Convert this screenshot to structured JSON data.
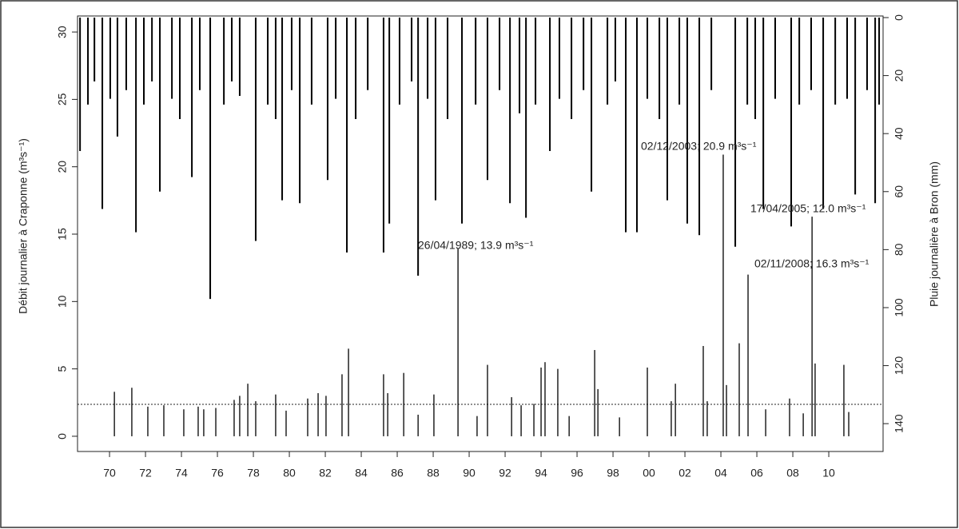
{
  "chart_data": {
    "type": "spikes",
    "ylabel": "Débit journalier à Craponne (m³s⁻¹)",
    "y2label": "Pluie journalière à Bron (mm)",
    "xlim": [
      1968.22,
      2013.02
    ],
    "xticks": [
      {
        "value": 1970,
        "label": "70"
      },
      {
        "value": 1972,
        "label": "72"
      },
      {
        "value": 1974,
        "label": "74"
      },
      {
        "value": 1976,
        "label": "76"
      },
      {
        "value": 1978,
        "label": "78"
      },
      {
        "value": 1980,
        "label": "80"
      },
      {
        "value": 1982,
        "label": "82"
      },
      {
        "value": 1984,
        "label": "84"
      },
      {
        "value": 1986,
        "label": "86"
      },
      {
        "value": 1988,
        "label": "88"
      },
      {
        "value": 1990,
        "label": "90"
      },
      {
        "value": 1992,
        "label": "92"
      },
      {
        "value": 1994,
        "label": "94"
      },
      {
        "value": 1996,
        "label": "96"
      },
      {
        "value": 1998,
        "label": "98"
      },
      {
        "value": 2000,
        "label": "00"
      },
      {
        "value": 2002,
        "label": "02"
      },
      {
        "value": 2004,
        "label": "04"
      },
      {
        "value": 2006,
        "label": "06"
      },
      {
        "value": 2008,
        "label": "08"
      },
      {
        "value": 2010,
        "label": "10"
      }
    ],
    "ylim": [
      -1.13,
      31.19
    ],
    "yticks": [
      0,
      5,
      10,
      15,
      20,
      25,
      30
    ],
    "y2lim": [
      -0.55,
      149.6
    ],
    "y2_reversed": true,
    "y2ticks": [
      0,
      20,
      40,
      60,
      80,
      100,
      120,
      140
    ],
    "threshold": 2.37,
    "series": [
      {
        "color": "#000000",
        "x": [
          1970.27,
          1971.24,
          1972.13,
          1973.02,
          1974.13,
          1974.93,
          1975.24,
          1975.91,
          1976.93,
          1977.24,
          1977.69,
          1978.13,
          1979.24,
          1979.82,
          1981.02,
          1981.6,
          1982.04,
          1982.93,
          1983.29,
          1985.24,
          1985.47,
          1986.36,
          1987.16,
          1988.04,
          1989.38,
          1990.44,
          1991.02,
          1992.36,
          1992.89,
          1993.6,
          1994.0,
          1994.22,
          1994.93,
          1995.56,
          1996.98,
          1997.16,
          1998.36,
          1999.91,
          2001.24,
          2001.47,
          2003.02,
          2003.24,
          2004.13,
          2004.31,
          2005.02,
          2005.51,
          2006.49,
          2007.82,
          2008.58,
          2009.07,
          2009.24,
          2010.84,
          2011.11
        ],
        "values": [
          3.3,
          3.6,
          2.2,
          2.3,
          2.0,
          2.2,
          2.0,
          2.1,
          2.7,
          3.0,
          3.9,
          2.6,
          3.1,
          1.9,
          2.8,
          3.2,
          3.0,
          4.6,
          6.5,
          4.6,
          3.2,
          4.7,
          1.6,
          3.1,
          13.9,
          1.5,
          5.3,
          2.9,
          2.3,
          2.4,
          5.1,
          5.5,
          5.0,
          1.5,
          6.4,
          3.5,
          1.4,
          5.1,
          2.6,
          3.9,
          6.7,
          2.6,
          20.9,
          3.8,
          6.9,
          12.0,
          2.0,
          2.8,
          1.7,
          16.3,
          5.4,
          5.3,
          1.8
        ]
      },
      {
        "color": "#000000",
        "axis": "y2",
        "x": [
          1968.36,
          1969.6,
          1970.44,
          1971.47,
          1972.8,
          1974.58,
          1975.6,
          1978.13,
          1979.6,
          1980.58,
          1982.13,
          1983.2,
          1985.24,
          1985.56,
          1987.16,
          1988.13,
          1989.6,
          1991.02,
          1992.27,
          1993.16,
          1994.49,
          1996.8,
          1998.71,
          1999.33,
          2001.02,
          2002.13,
          2002.8,
          2004.8,
          2006.36,
          2007.91,
          2009.69,
          2011.47,
          2012.58,
          1968.8,
          1969.16,
          1970.04,
          1970.93,
          1971.91,
          1972.36,
          1973.47,
          1973.91,
          1975.02,
          1976.36,
          1976.8,
          1977.24,
          1978.8,
          1979.24,
          1980.13,
          1981.24,
          1982.58,
          1983.69,
          1984.36,
          1986.13,
          1986.8,
          1987.69,
          1988.8,
          1990.36,
          1991.69,
          1992.8,
          1993.69,
          1995.02,
          1995.69,
          1996.36,
          1997.69,
          1998.13,
          1999.91,
          2000.58,
          2001.69,
          2003.47,
          2005.47,
          2005.91,
          2007.02,
          2008.36,
          2009.02,
          2010.36,
          2011.02,
          2012.13,
          2012.8
        ],
        "values": [
          46,
          66,
          41,
          74,
          60,
          55,
          97,
          77,
          63,
          64,
          56,
          81,
          81,
          71,
          89,
          63,
          71,
          56,
          64,
          69,
          46,
          60,
          74,
          74,
          63,
          71,
          75,
          79,
          66,
          72,
          66,
          61,
          64,
          30,
          22,
          28,
          25,
          30,
          22,
          28,
          35,
          25,
          30,
          22,
          27,
          30,
          35,
          25,
          30,
          28,
          35,
          25,
          30,
          22,
          28,
          35,
          30,
          25,
          33,
          30,
          28,
          35,
          25,
          30,
          22,
          28,
          35,
          30,
          25,
          30,
          35,
          28,
          30,
          25,
          30,
          28,
          25,
          30
        ]
      }
    ],
    "annotations": [
      "26/04/1989; 13.9 m³s⁻¹",
      "02/12/2003; 20.9 m³s⁻¹",
      "17/04/2005; 12.0 m³s⁻¹",
      "02/11/2008; 16.3 m³s⁻¹"
    ]
  }
}
